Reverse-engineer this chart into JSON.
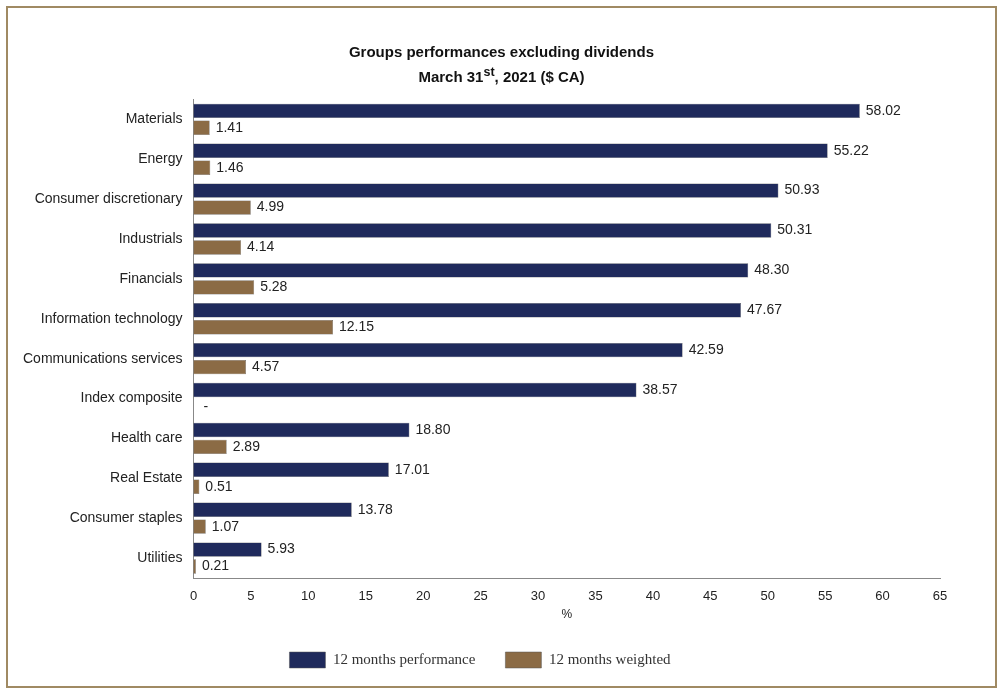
{
  "chart_data": {
    "type": "bar",
    "orientation": "horizontal",
    "title": "Groups performances excluding dividends",
    "subtitle": "March 31$^{st}$, 2021 ($ CA)",
    "xlabel": "%",
    "categories": [
      "Materials",
      "Energy",
      "Consumer discretionary",
      "Industrials",
      "Financials",
      "Information technology",
      "Communications services",
      "Index composite",
      "Health care",
      "Real Estate",
      "Consumer staples",
      "Utilities"
    ],
    "series": [
      {
        "name": "12 months performance",
        "color": "#1f2a5c",
        "values": [
          58.02,
          55.22,
          50.93,
          50.31,
          48.3,
          47.67,
          42.59,
          38.57,
          18.8,
          17.01,
          13.78,
          5.93
        ],
        "value_labels": [
          "58.02",
          "55.22",
          "50.93",
          "50.31",
          "48.30",
          "47.67",
          "42.59",
          "38.57",
          "18.80",
          "17.01",
          "13.78",
          "5.93"
        ]
      },
      {
        "name": "12 months weighted",
        "color": "#8b6b45",
        "values": [
          1.41,
          1.46,
          4.99,
          4.14,
          5.28,
          12.15,
          4.57,
          null,
          2.89,
          0.51,
          1.07,
          0.21
        ],
        "value_labels": [
          "1.41",
          "1.46",
          "4.99",
          "4.14",
          "5.28",
          "12.15",
          "4.57",
          "-",
          "2.89",
          "0.51",
          "1.07",
          "0.21"
        ]
      }
    ],
    "xlim": [
      0,
      65
    ],
    "xticks": [
      0,
      5,
      10,
      15,
      20,
      25,
      30,
      35,
      40,
      45,
      50,
      55,
      60,
      65
    ],
    "grid": false,
    "legend": "bottom"
  }
}
